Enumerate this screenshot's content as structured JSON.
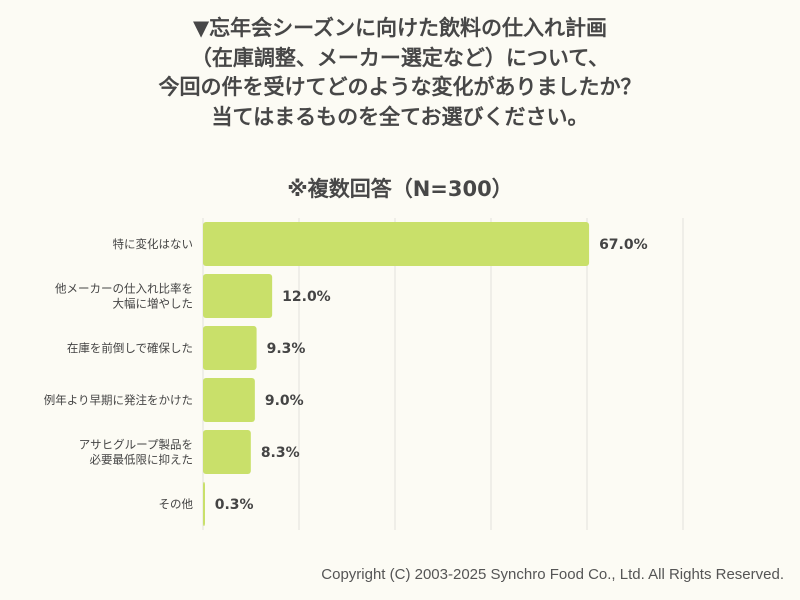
{
  "chart_data": {
    "type": "bar",
    "orientation": "horizontal",
    "title_lines": [
      "▼忘年会シーズンに向けた飲料の仕入れ計画",
      "（在庫調整、メーカー選定など）について、",
      "今回の件を受けてどのような変化がありましたか？",
      "当てはまるものを全てお選びください。"
    ],
    "subtitle": "※複数回答（N=300）",
    "categories": [
      [
        "特に変化はない"
      ],
      [
        "他メーカーの仕入れ比率を",
        "大幅に増やした"
      ],
      [
        "在庫を前倒しで確保した"
      ],
      [
        "例年より早期に発注をかけた"
      ],
      [
        "アサヒグループ製品を",
        "必要最低限に抑えた"
      ],
      [
        "その他"
      ]
    ],
    "values": [
      67.0,
      12.0,
      9.3,
      9.0,
      8.3,
      0.3
    ],
    "value_labels": [
      "67.0%",
      "12.0%",
      "9.3%",
      "9.0%",
      "8.3%",
      "0.3%"
    ],
    "xlim": [
      0,
      83.3
    ],
    "grid": true,
    "bar_color": "#c9e06a"
  },
  "footer": {
    "copyright": "Copyright (C) 2003-2025  Synchro Food Co., Ltd. All Rights Reserved."
  }
}
